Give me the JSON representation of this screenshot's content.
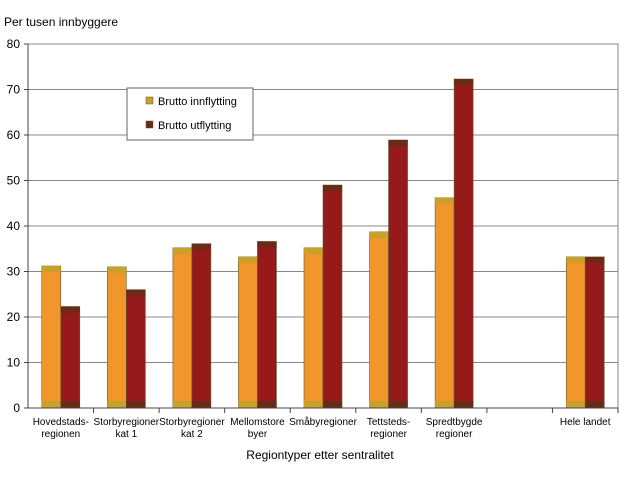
{
  "chart_data": {
    "type": "bar",
    "title": "",
    "ylabel": "Per tusen innbyggere",
    "xlabel": "Regiontyper etter sentralitet",
    "ylim": [
      0,
      80
    ],
    "yticks": [
      0,
      10,
      20,
      30,
      40,
      50,
      60,
      70,
      80
    ],
    "grid": true,
    "legend_position": "top-left",
    "categories": [
      [
        "Hovedstads-",
        "regionen"
      ],
      [
        "Storbyregioner",
        "kat 1"
      ],
      [
        "Storbyregioner",
        "kat 2"
      ],
      [
        "Mellomstore",
        "byer"
      ],
      [
        "Småbyregioner"
      ],
      [
        "Tettsteds-",
        "regioner"
      ],
      [
        "Spredtbygde",
        "regioner"
      ],
      [
        ""
      ],
      [
        "Hele landet"
      ]
    ],
    "series": [
      {
        "name": "Brutto innflytting",
        "color": "#f0962a",
        "cap_color": "#c8a02a",
        "values": [
          31.2,
          31.0,
          35.2,
          33.2,
          35.2,
          38.7,
          46.2,
          null,
          33.2
        ]
      },
      {
        "name": "Brutto utflytting",
        "color": "#961a1a",
        "cap_color": "#6a2a18",
        "values": [
          22.3,
          26.0,
          36.1,
          36.6,
          49.0,
          58.9,
          72.3,
          null,
          33.2
        ]
      }
    ]
  }
}
